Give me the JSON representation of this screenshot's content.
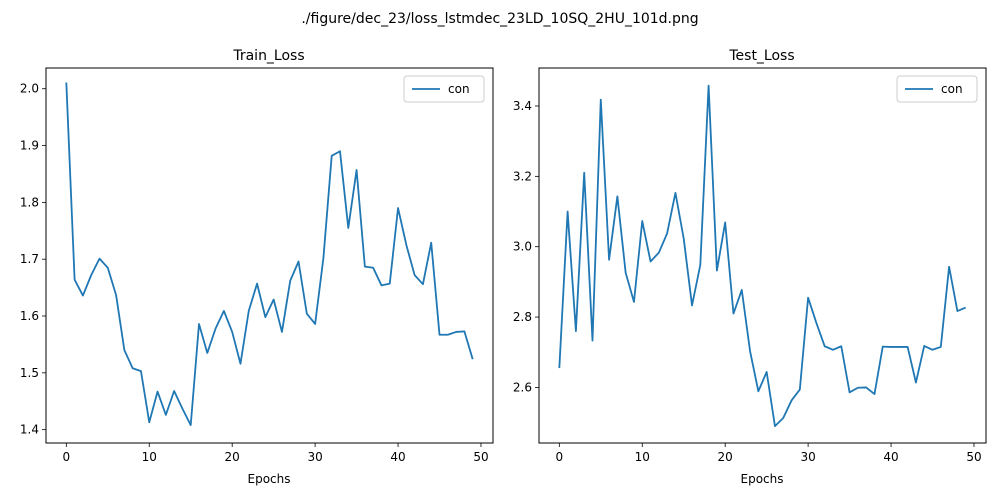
{
  "figure": {
    "suptitle": "./figure/dec_23/loss_lstmdec_23LD_10SQ_2HU_101d.png"
  },
  "colors": {
    "series": "#1f77b4",
    "axes": "#000000",
    "legend_border": "#cccccc"
  },
  "chart_data": [
    {
      "type": "line",
      "title": "Train_Loss",
      "xlabel": "Epochs",
      "ylabel": "",
      "xlim": [
        -2.45,
        51.45
      ],
      "ylim": [
        1.3765,
        2.0365
      ],
      "xticks": [
        0,
        10,
        20,
        30,
        40,
        50
      ],
      "yticks": [
        1.4,
        1.5,
        1.6,
        1.7,
        1.8,
        1.9,
        2.0
      ],
      "ytick_labels": [
        "1.4",
        "1.5",
        "1.6",
        "1.7",
        "1.8",
        "1.9",
        "2.0"
      ],
      "legend_position": "top-right",
      "grid": false,
      "series": [
        {
          "name": "con",
          "x": [
            0,
            1,
            2,
            3,
            4,
            5,
            6,
            7,
            8,
            9,
            10,
            11,
            12,
            13,
            14,
            15,
            16,
            17,
            18,
            19,
            20,
            21,
            22,
            23,
            24,
            25,
            26,
            27,
            28,
            29,
            30,
            31,
            32,
            33,
            34,
            35,
            36,
            37,
            38,
            39,
            40,
            41,
            42,
            43,
            44,
            45,
            46,
            47,
            48,
            49
          ],
          "y": [
            2.011,
            1.664,
            1.636,
            1.672,
            1.701,
            1.685,
            1.637,
            1.54,
            1.508,
            1.503,
            1.413,
            1.467,
            1.426,
            1.468,
            1.437,
            1.408,
            1.586,
            1.535,
            1.578,
            1.609,
            1.572,
            1.516,
            1.609,
            1.657,
            1.598,
            1.629,
            1.572,
            1.662,
            1.696,
            1.604,
            1.586,
            1.702,
            1.882,
            1.89,
            1.755,
            1.857,
            1.687,
            1.685,
            1.654,
            1.657,
            1.79,
            1.725,
            1.672,
            1.656,
            1.729,
            1.567,
            1.567,
            1.572,
            1.573,
            1.524
          ]
        }
      ]
    },
    {
      "type": "line",
      "title": "Test_Loss",
      "xlabel": "Epochs",
      "ylabel": "",
      "xlim": [
        -2.45,
        51.45
      ],
      "ylim": [
        2.442,
        3.508
      ],
      "xticks": [
        0,
        10,
        20,
        30,
        40,
        50
      ],
      "yticks": [
        2.6,
        2.8,
        3.0,
        3.2,
        3.4
      ],
      "ytick_labels": [
        "2.6",
        "2.8",
        "3.0",
        "3.2",
        "3.4"
      ],
      "legend_position": "top-right",
      "grid": false,
      "series": [
        {
          "name": "con",
          "x": [
            0,
            1,
            2,
            3,
            4,
            5,
            6,
            7,
            8,
            9,
            10,
            11,
            12,
            13,
            14,
            15,
            16,
            17,
            18,
            19,
            20,
            21,
            22,
            23,
            24,
            25,
            26,
            27,
            28,
            29,
            30,
            31,
            32,
            33,
            34,
            35,
            36,
            37,
            38,
            39,
            40,
            41,
            42,
            43,
            44,
            45,
            46,
            47,
            48,
            49
          ],
          "y": [
            2.655,
            3.1,
            2.76,
            3.21,
            2.733,
            3.418,
            2.963,
            3.143,
            2.926,
            2.843,
            3.073,
            2.958,
            2.983,
            3.038,
            3.153,
            3.023,
            2.833,
            2.948,
            3.458,
            2.932,
            3.069,
            2.81,
            2.877,
            2.703,
            2.589,
            2.644,
            2.49,
            2.513,
            2.563,
            2.594,
            2.855,
            2.783,
            2.717,
            2.707,
            2.717,
            2.586,
            2.599,
            2.6,
            2.581,
            2.716,
            2.715,
            2.715,
            2.715,
            2.614,
            2.718,
            2.707,
            2.715,
            2.943,
            2.817,
            2.827
          ]
        }
      ]
    }
  ]
}
